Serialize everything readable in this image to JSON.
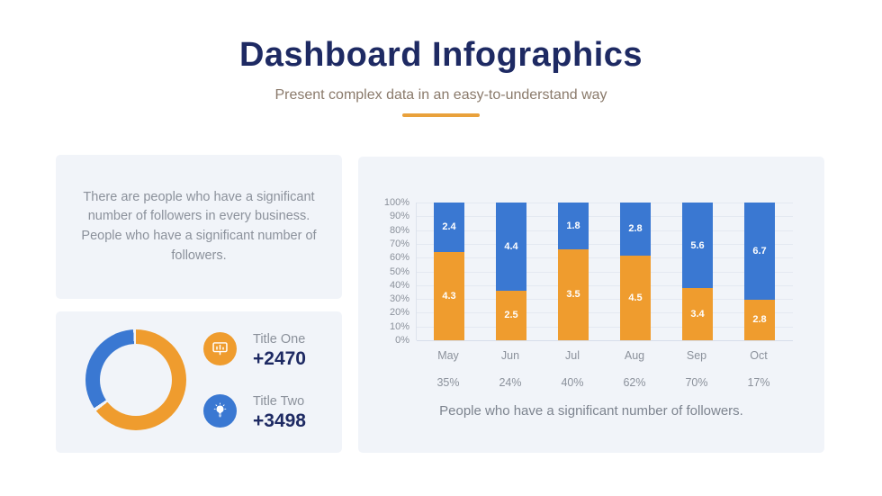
{
  "header": {
    "title": "Dashboard Infographics",
    "subtitle": "Present complex data in an easy-to-understand way"
  },
  "colors": {
    "navy": "#1e2a63",
    "orange": "#ef9c2e",
    "blue": "#3a78d2",
    "panel_bg": "#f1f4f9",
    "accent_divider": "#e9a13b",
    "gray_text": "#8b919b",
    "subtitle_text": "#8a7a6b",
    "gridline": "#e4e9f1"
  },
  "description_panel": {
    "text": "There are people who have a significant number of followers in every business. People who have a significant number of followers."
  },
  "stats_panel": {
    "stats": [
      {
        "icon": "presentation-chart-icon",
        "icon_color": "#ef9c2e",
        "title": "Title One",
        "value": "+2470"
      },
      {
        "icon": "lightbulb-icon",
        "icon_color": "#3a78d2",
        "title": "Title Two",
        "value": "+3498"
      }
    ]
  },
  "chart_data": [
    {
      "type": "bar",
      "stacked": true,
      "normalized": "each column scaled to 100%",
      "categories": [
        "May",
        "Jun",
        "Jul",
        "Aug",
        "Sep",
        "Oct"
      ],
      "series": [
        {
          "name": "orange-series",
          "color": "#ef9c2e",
          "values": [
            4.3,
            2.5,
            3.5,
            4.5,
            3.4,
            2.8
          ]
        },
        {
          "name": "blue-series",
          "color": "#3a78d2",
          "values": [
            2.4,
            4.4,
            1.8,
            2.8,
            5.6,
            6.7
          ]
        }
      ],
      "footer_percentages": [
        "35%",
        "24%",
        "40%",
        "62%",
        "70%",
        "17%"
      ],
      "y_ticks": [
        "100%",
        "90%",
        "80%",
        "70%",
        "60%",
        "50%",
        "40%",
        "30%",
        "20%",
        "10%",
        "0%"
      ],
      "ylim": [
        0,
        100
      ],
      "grid": true,
      "legend": "none",
      "caption": "People who have a significant number of followers."
    },
    {
      "type": "pie",
      "donut": true,
      "slices": [
        {
          "name": "orange-slice",
          "color": "#ef9c2e",
          "value": 65
        },
        {
          "name": "blue-slice",
          "color": "#3a78d2",
          "value": 35
        }
      ]
    }
  ]
}
